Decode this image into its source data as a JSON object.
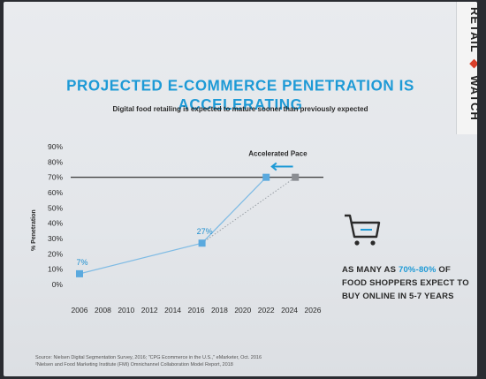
{
  "slide": {
    "title": "PROJECTED E-COMMERCE PENETRATION IS ACCELERATING",
    "subtitle": "Digital food retailing is expected to mature sooner than previously expected"
  },
  "logo": {
    "top": "RETAIL",
    "bottom": "WATCH",
    "accent_color": "#d9402b"
  },
  "callout": {
    "pre": "AS MANY AS ",
    "highlight": "70%-80%",
    "post": " OF FOOD SHOPPERS EXPECT TO BUY ONLINE IN 5-7 YEARS",
    "icon": "shopping-cart-icon"
  },
  "source": {
    "line1": "Source: Nielsen Digital Segmentation Survey, 2016; \"CPG Ecommerce in the U.S.,\" eMarketer, Oct. 2016",
    "line2": "²Nielsen and Food Marketing Institute (FMI) Omnichannel Collaboration Model Report, 2018"
  },
  "colors": {
    "accent": "#1e9ad6",
    "marker_blue": "#5aa9de",
    "marker_gray": "#8a8d92",
    "line": "#7fbbe4"
  },
  "chart_data": {
    "type": "line",
    "title": "PROJECTED E-COMMERCE PENETRATION IS ACCELERATING",
    "ylabel": "% Penetration",
    "xlabel": "",
    "x_ticks": [
      2006,
      2008,
      2010,
      2012,
      2014,
      2016,
      2018,
      2020,
      2022,
      2024,
      2026
    ],
    "y_ticks": [
      "0%",
      "10%",
      "20%",
      "30%",
      "40%",
      "50%",
      "60%",
      "70%",
      "80%",
      "90%"
    ],
    "xlim": [
      2006,
      2026
    ],
    "ylim": [
      0,
      90
    ],
    "reference_line": {
      "y": 70
    },
    "series": [
      {
        "points": [
          {
            "x": 2006,
            "y": 7
          },
          {
            "x": 2016.5,
            "y": 27
          },
          {
            "x": 2022,
            "y": 70
          }
        ],
        "style": "solid"
      },
      {
        "points": [
          {
            "x": 2016.5,
            "y": 27
          },
          {
            "x": 2024.5,
            "y": 70
          }
        ],
        "style": "dotted"
      }
    ],
    "data_labels": [
      {
        "x": 2006,
        "y": 7,
        "text": "7%"
      },
      {
        "x": 2016.5,
        "y": 27,
        "text": "27%"
      }
    ],
    "annotations": [
      {
        "text": "Accelerated Pace",
        "x": 2023,
        "y": 84
      }
    ],
    "arrow": {
      "from_x": 2024.3,
      "to_x": 2022.5,
      "y": 77
    },
    "grid": false
  }
}
